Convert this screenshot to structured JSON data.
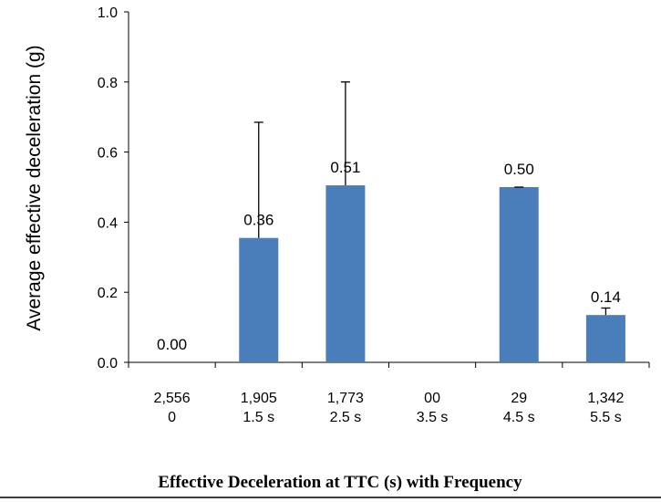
{
  "chart_data": {
    "type": "bar",
    "title": "",
    "xlabel": "Effective Deceleration at TTC (s) with Frequency",
    "ylabel": "Average effective deceleration (g)",
    "ylim": [
      0,
      1.0
    ],
    "y_ticks": [
      "0.0",
      "0.2",
      "0.4",
      "0.6",
      "0.8",
      "1.0"
    ],
    "categories": [
      {
        "frequency": "2,556",
        "ttc": "0"
      },
      {
        "frequency": "1,905",
        "ttc": "1.5 s"
      },
      {
        "frequency": "1,773",
        "ttc": "2.5 s"
      },
      {
        "frequency": "00",
        "ttc": "3.5 s"
      },
      {
        "frequency": "29",
        "ttc": "4.5 s"
      },
      {
        "frequency": "1,342",
        "ttc": "5.5 s"
      }
    ],
    "values": [
      0.0,
      0.355,
      0.505,
      0.0,
      0.5,
      0.135
    ],
    "error_upper": [
      0.0,
      0.685,
      0.8,
      0.0,
      0.5,
      0.155
    ],
    "data_labels": [
      "0.00",
      "0.36",
      "0.51",
      "",
      "0.50",
      "0.14"
    ],
    "bar_color": "#4a7ebb",
    "grid": false,
    "legend": "none"
  }
}
